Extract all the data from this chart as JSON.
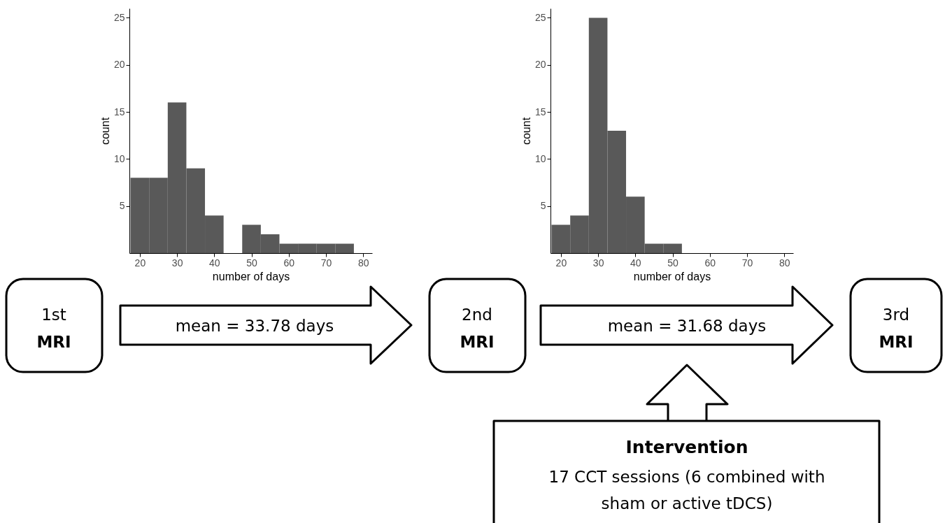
{
  "chart_data": [
    {
      "type": "histogram",
      "xlabel": "number of days",
      "ylabel": "count",
      "color": "#595959",
      "bins": [
        17.5,
        22.5,
        27.5,
        32.5,
        37.5,
        42.5,
        47.5,
        52.5,
        57.5,
        62.5,
        67.5,
        72.5,
        77.5
      ],
      "values": [
        8,
        8,
        16,
        9,
        4,
        0,
        3,
        2,
        1,
        1,
        1,
        1
      ],
      "xlim": [
        17.2,
        82.4
      ],
      "ylim": [
        0,
        26
      ],
      "xticks": [
        20,
        30,
        40,
        50,
        60,
        70,
        80
      ],
      "yticks": [
        5,
        10,
        15,
        20,
        25
      ],
      "grid": false
    },
    {
      "type": "histogram",
      "xlabel": "number of days",
      "ylabel": "count",
      "color": "#595959",
      "bins": [
        17.5,
        22.5,
        27.5,
        32.5,
        37.5,
        42.5,
        47.5,
        52.5
      ],
      "values": [
        3,
        4,
        25,
        13,
        6,
        1,
        1
      ],
      "xlim": [
        17.2,
        82.4
      ],
      "ylim": [
        0,
        26
      ],
      "xticks": [
        20,
        30,
        40,
        50,
        60,
        70,
        80
      ],
      "yticks": [
        5,
        10,
        15,
        20,
        25
      ],
      "grid": false
    },
    {
      "type": "other",
      "annotations": [
        "1st",
        "MRI",
        "mean = 33.78 days",
        "2nd",
        "MRI",
        "mean = 31.68 days",
        "3rd",
        "MRI",
        "Intervention",
        "17 CCT sessions (6 combined with sham or active tDCS)"
      ]
    }
  ]
}
